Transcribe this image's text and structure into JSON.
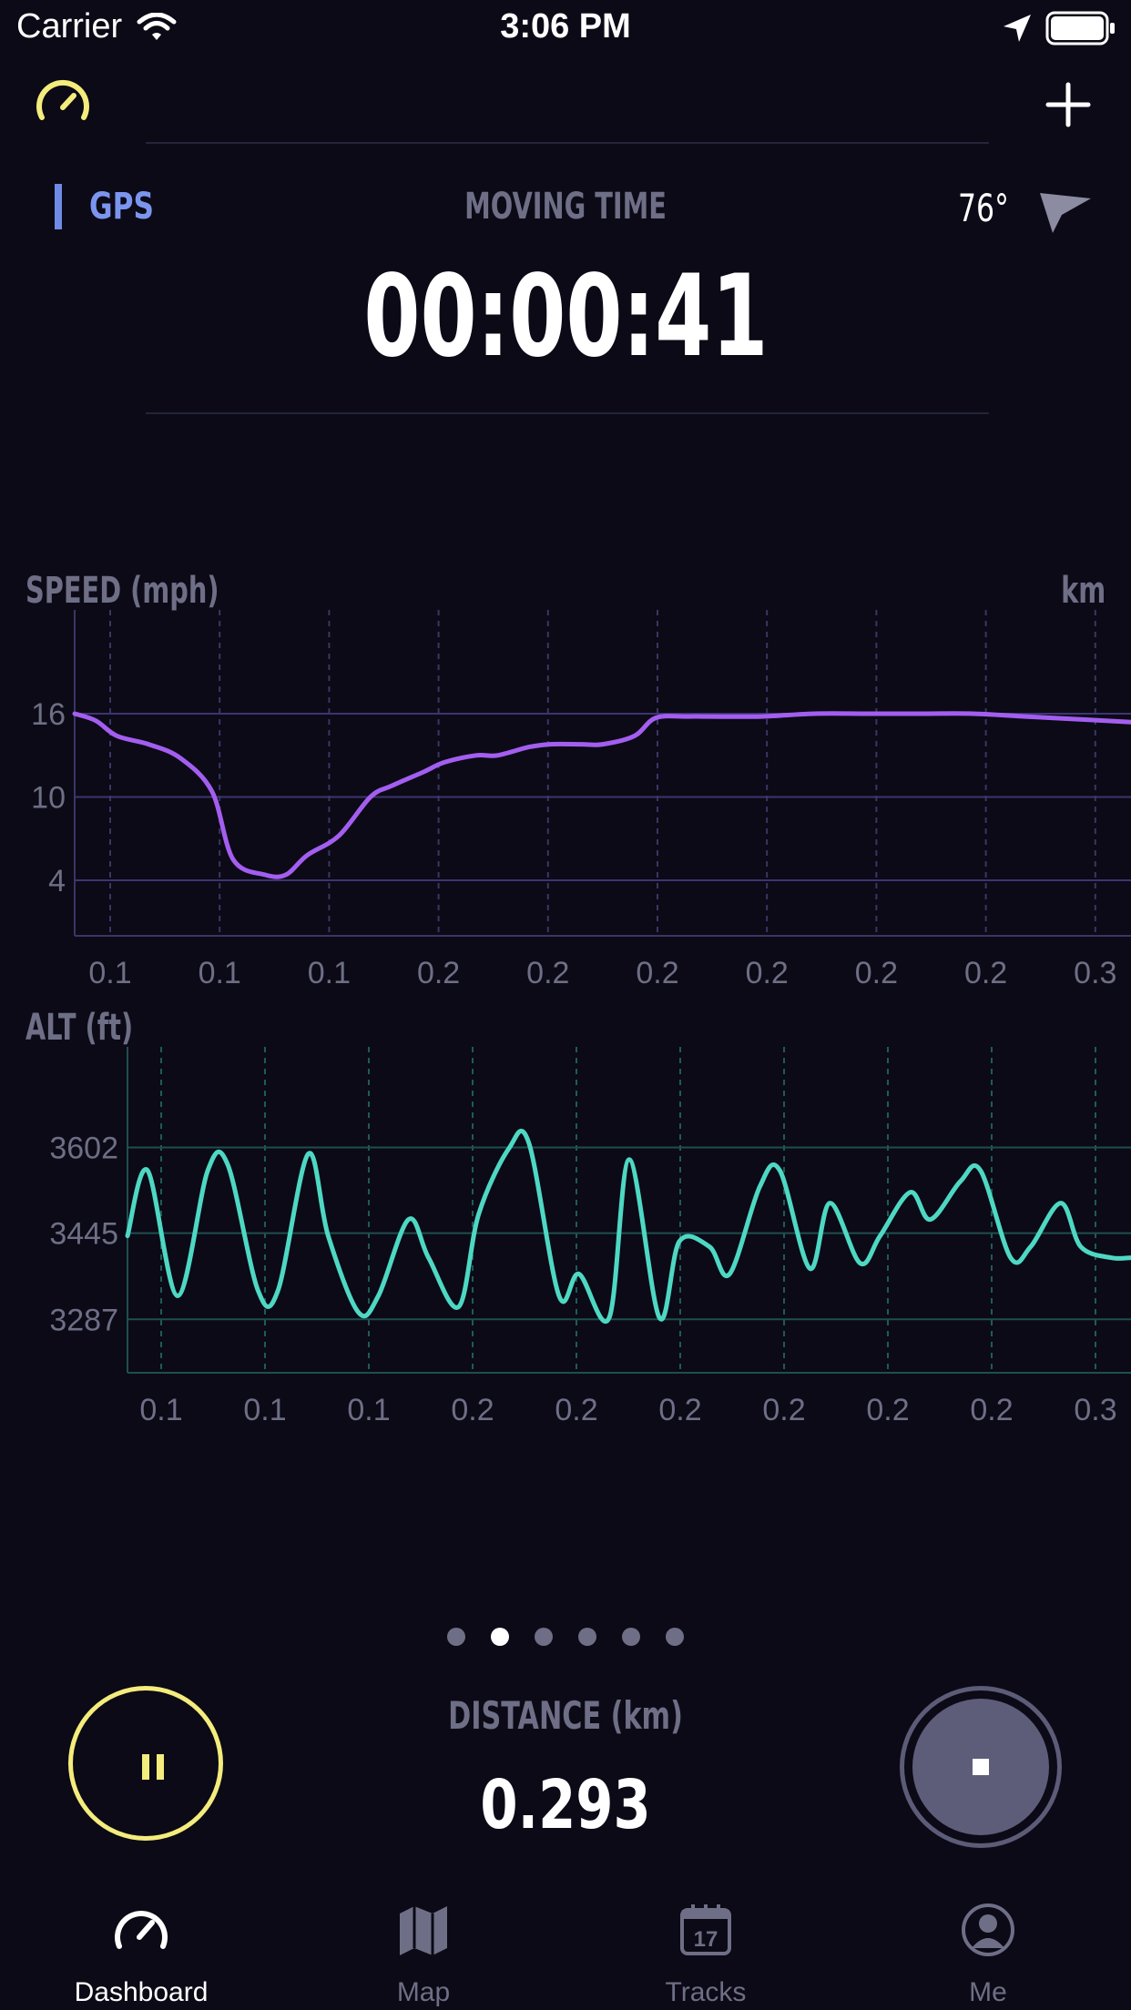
{
  "status_bar": {
    "carrier": "Carrier",
    "time": "3:06 PM"
  },
  "header": {
    "gps_label": "GPS",
    "moving_time_label": "MOVING TIME",
    "moving_time": "00:00:41",
    "temperature": "76°"
  },
  "speed_chart": {
    "title": "SPEED (mph)",
    "unit_label": "km"
  },
  "alt_chart": {
    "title": "ALT (ft)"
  },
  "chart_data": [
    {
      "type": "line",
      "title": "SPEED (mph)",
      "unit_label": "km",
      "y_ticks": [
        16,
        10,
        4
      ],
      "x_tick_labels": [
        "0.1",
        "0.1",
        "0.1",
        "0.2",
        "0.2",
        "0.2",
        "0.2",
        "0.2",
        "0.2",
        "0.3"
      ],
      "ylim": [
        0,
        20.2
      ],
      "grid": true,
      "color": "#a35ef0",
      "x": [
        0,
        0.02,
        0.04,
        0.07,
        0.1,
        0.13,
        0.15,
        0.18,
        0.2,
        0.22,
        0.25,
        0.28,
        0.3,
        0.33,
        0.35,
        0.38,
        0.4,
        0.43,
        0.45,
        0.48,
        0.5,
        0.53,
        0.55,
        0.58,
        0.6,
        0.65,
        0.7,
        0.75,
        0.8,
        0.85,
        0.9,
        0.95,
        1
      ],
      "y": [
        16,
        15.5,
        14.4,
        13.8,
        12.8,
        10.4,
        5.5,
        4.4,
        4.4,
        5.8,
        7.2,
        10,
        10.8,
        11.8,
        12.5,
        13,
        13,
        13.6,
        13.8,
        13.8,
        13.8,
        14.4,
        15.7,
        15.8,
        15.8,
        15.8,
        16,
        16,
        16,
        16,
        15.8,
        15.6,
        15.4
      ]
    },
    {
      "type": "line",
      "title": "ALT (ft)",
      "y_ticks": [
        3602,
        3445,
        3287
      ],
      "x_tick_labels": [
        "0.1",
        "0.1",
        "0.1",
        "0.2",
        "0.2",
        "0.2",
        "0.2",
        "0.2",
        "0.2",
        "0.3"
      ],
      "ylim": [
        3189,
        3703
      ],
      "grid": true,
      "color": "#4ed8c4",
      "x": [
        0,
        0.02,
        0.05,
        0.08,
        0.1,
        0.13,
        0.15,
        0.18,
        0.2,
        0.23,
        0.25,
        0.28,
        0.3,
        0.33,
        0.35,
        0.38,
        0.4,
        0.43,
        0.45,
        0.48,
        0.5,
        0.53,
        0.55,
        0.58,
        0.6,
        0.63,
        0.65,
        0.68,
        0.7,
        0.73,
        0.75,
        0.78,
        0.8,
        0.83,
        0.85,
        0.88,
        0.9,
        0.93,
        0.95,
        0.98,
        1
      ],
      "y": [
        3440,
        3560,
        3330,
        3560,
        3570,
        3340,
        3340,
        3590,
        3440,
        3300,
        3330,
        3470,
        3400,
        3310,
        3480,
        3600,
        3610,
        3330,
        3370,
        3290,
        3580,
        3290,
        3430,
        3420,
        3370,
        3530,
        3560,
        3380,
        3500,
        3390,
        3440,
        3520,
        3470,
        3540,
        3560,
        3400,
        3420,
        3500,
        3420,
        3400,
        3400
      ]
    }
  ],
  "pager": {
    "count": 6,
    "active_index": 1
  },
  "controls": {
    "distance_label": "DISTANCE (km)",
    "distance_value": "0.293"
  },
  "tab_bar": {
    "items": [
      {
        "label": "Dashboard",
        "icon": "speedometer-icon",
        "active": true
      },
      {
        "label": "Map",
        "icon": "map-icon",
        "active": false
      },
      {
        "label": "Tracks",
        "icon": "calendar-icon",
        "active": false,
        "badge": "17"
      },
      {
        "label": "Me",
        "icon": "person-icon",
        "active": false
      }
    ]
  },
  "colors": {
    "background": "#0b0a16",
    "accent_yellow": "#f4ec7c",
    "gps_blue": "#7b95ef",
    "speed_purple": "#a35ef0",
    "alt_teal": "#4ed8c4",
    "muted": "#6e6e86"
  }
}
